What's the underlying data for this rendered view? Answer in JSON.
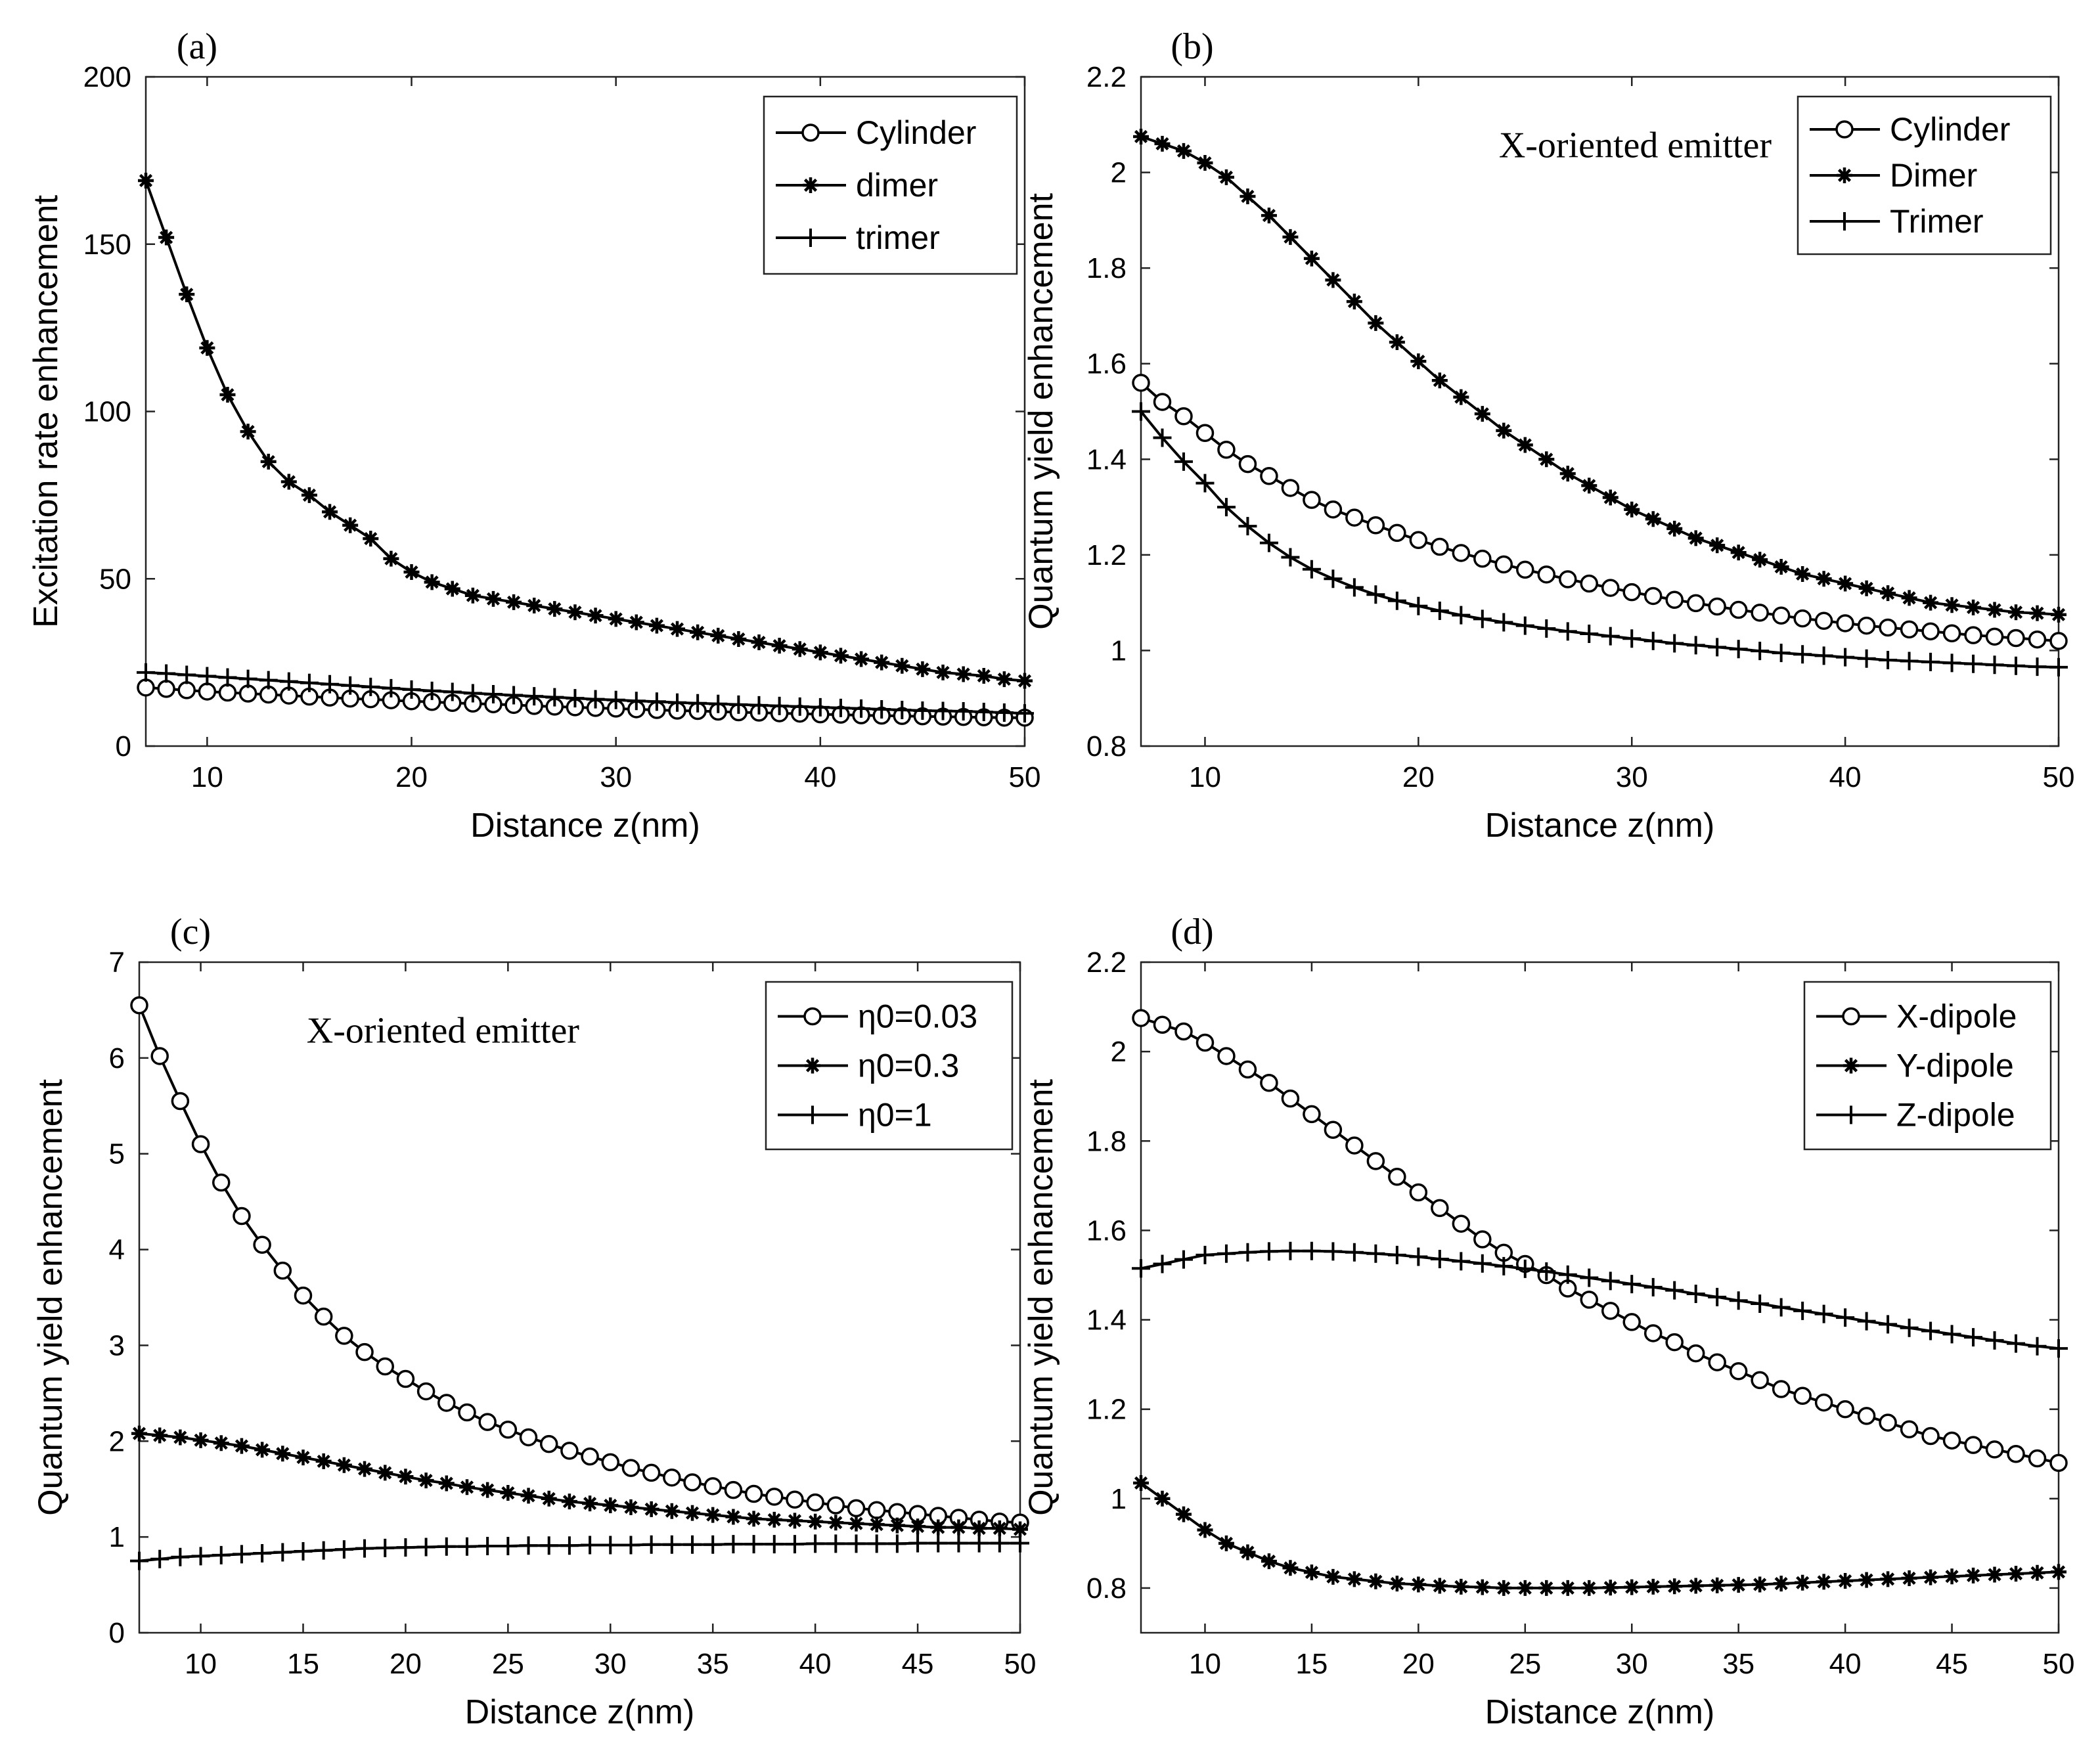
{
  "figure": {
    "background": "#ffffff",
    "ink": "#000000"
  },
  "chart_data": [
    {
      "panel_label": "(a)",
      "type": "line",
      "title": "",
      "annotation": "",
      "xlabel": "Distance z(nm)",
      "ylabel": "Excitation rate enhancement",
      "xlim": [
        7,
        50
      ],
      "ylim": [
        0,
        200
      ],
      "xticks": [
        10,
        20,
        30,
        40,
        50
      ],
      "yticks": [
        0,
        50,
        100,
        150,
        200
      ],
      "legend_position": "top-right",
      "x": [
        7,
        8,
        9,
        10,
        11,
        12,
        13,
        14,
        15,
        16,
        17,
        18,
        19,
        20,
        21,
        22,
        23,
        24,
        25,
        26,
        27,
        28,
        29,
        30,
        31,
        32,
        33,
        34,
        35,
        36,
        37,
        38,
        39,
        40,
        41,
        42,
        43,
        44,
        45,
        46,
        47,
        48,
        49,
        50
      ],
      "series": [
        {
          "name": "Cylinder",
          "marker": "circle",
          "values": [
            17.5,
            17.1,
            16.7,
            16.3,
            16.0,
            15.7,
            15.4,
            15.1,
            14.8,
            14.5,
            14.2,
            14.0,
            13.7,
            13.4,
            13.2,
            12.9,
            12.7,
            12.5,
            12.3,
            12.0,
            11.8,
            11.6,
            11.4,
            11.2,
            11.0,
            10.8,
            10.6,
            10.5,
            10.3,
            10.1,
            10.0,
            9.8,
            9.7,
            9.5,
            9.4,
            9.2,
            9.1,
            9.0,
            8.9,
            8.8,
            8.7,
            8.6,
            8.5,
            8.5
          ]
        },
        {
          "name": "dimer",
          "marker": "star",
          "values": [
            169,
            152,
            135,
            119,
            105,
            94,
            85,
            79,
            75,
            70,
            66,
            62,
            56,
            52,
            49,
            47,
            45,
            44,
            43,
            42,
            41,
            40,
            39,
            38,
            37,
            36,
            35,
            34,
            33,
            32,
            31,
            30,
            29,
            28,
            27,
            26,
            25,
            24,
            23,
            22,
            21.5,
            21,
            20,
            19.5
          ]
        },
        {
          "name": "trimer",
          "marker": "plus",
          "values": [
            22.0,
            21.7,
            21.3,
            20.9,
            20.5,
            20.1,
            19.7,
            19.3,
            18.9,
            18.5,
            18.1,
            17.7,
            17.3,
            16.9,
            16.5,
            16.2,
            15.8,
            15.5,
            15.2,
            14.9,
            14.6,
            14.3,
            14.0,
            13.8,
            13.5,
            13.3,
            13.0,
            12.8,
            12.6,
            12.4,
            12.2,
            12.0,
            11.8,
            11.6,
            11.4,
            11.2,
            11.0,
            10.8,
            10.6,
            10.5,
            10.4,
            10.2,
            10.0,
            9.8
          ]
        }
      ]
    },
    {
      "panel_label": "(b)",
      "type": "line",
      "title": "",
      "annotation": "X-oriented emitter",
      "xlabel": "Distance z(nm)",
      "ylabel": "Quantum yield enhancement",
      "xlim": [
        7,
        50
      ],
      "ylim": [
        0.8,
        2.2
      ],
      "xticks": [
        10,
        20,
        30,
        40,
        50
      ],
      "yticks": [
        0.8,
        1,
        1.2,
        1.4,
        1.6,
        1.8,
        2,
        2.2
      ],
      "ytick_labels": [
        "0.8",
        "1",
        "1.2",
        "1.4",
        "1.6",
        "1.8",
        "2",
        "2.2"
      ],
      "legend_position": "top-right",
      "x": [
        7,
        8,
        9,
        10,
        11,
        12,
        13,
        14,
        15,
        16,
        17,
        18,
        19,
        20,
        21,
        22,
        23,
        24,
        25,
        26,
        27,
        28,
        29,
        30,
        31,
        32,
        33,
        34,
        35,
        36,
        37,
        38,
        39,
        40,
        41,
        42,
        43,
        44,
        45,
        46,
        47,
        48,
        49,
        50
      ],
      "series": [
        {
          "name": "Cylinder",
          "marker": "circle",
          "values": [
            1.56,
            1.52,
            1.49,
            1.455,
            1.42,
            1.39,
            1.365,
            1.34,
            1.315,
            1.295,
            1.278,
            1.262,
            1.246,
            1.231,
            1.217,
            1.204,
            1.192,
            1.18,
            1.169,
            1.159,
            1.149,
            1.14,
            1.131,
            1.122,
            1.114,
            1.106,
            1.099,
            1.092,
            1.085,
            1.079,
            1.073,
            1.067,
            1.062,
            1.057,
            1.052,
            1.048,
            1.044,
            1.04,
            1.036,
            1.032,
            1.029,
            1.026,
            1.023,
            1.02
          ]
        },
        {
          "name": "Dimer",
          "marker": "star",
          "values": [
            2.075,
            2.06,
            2.045,
            2.02,
            1.99,
            1.95,
            1.91,
            1.865,
            1.82,
            1.775,
            1.73,
            1.685,
            1.645,
            1.605,
            1.565,
            1.53,
            1.495,
            1.46,
            1.43,
            1.4,
            1.37,
            1.345,
            1.32,
            1.295,
            1.275,
            1.255,
            1.235,
            1.22,
            1.205,
            1.19,
            1.175,
            1.16,
            1.15,
            1.14,
            1.13,
            1.12,
            1.11,
            1.1,
            1.095,
            1.09,
            1.085,
            1.08,
            1.078,
            1.075
          ]
        },
        {
          "name": "Trimer",
          "marker": "plus",
          "values": [
            1.5,
            1.445,
            1.395,
            1.35,
            1.3,
            1.26,
            1.225,
            1.195,
            1.17,
            1.15,
            1.132,
            1.117,
            1.104,
            1.093,
            1.083,
            1.074,
            1.066,
            1.059,
            1.052,
            1.046,
            1.04,
            1.035,
            1.03,
            1.025,
            1.02,
            1.015,
            1.011,
            1.007,
            1.003,
            0.999,
            0.995,
            0.992,
            0.989,
            0.986,
            0.983,
            0.98,
            0.978,
            0.976,
            0.974,
            0.972,
            0.97,
            0.968,
            0.966,
            0.965
          ]
        }
      ]
    },
    {
      "panel_label": "(c)",
      "type": "line",
      "title": "",
      "annotation": "X-oriented emitter",
      "xlabel": "Distance z(nm)",
      "ylabel": "Quantum yield enhancement",
      "xlim": [
        7,
        50
      ],
      "ylim": [
        0,
        7
      ],
      "xticks": [
        10,
        15,
        20,
        25,
        30,
        35,
        40,
        45,
        50
      ],
      "yticks": [
        0,
        1,
        2,
        3,
        4,
        5,
        6,
        7
      ],
      "legend_position": "top-right",
      "x": [
        7,
        8,
        9,
        10,
        11,
        12,
        13,
        14,
        15,
        16,
        17,
        18,
        19,
        20,
        21,
        22,
        23,
        24,
        25,
        26,
        27,
        28,
        29,
        30,
        31,
        32,
        33,
        34,
        35,
        36,
        37,
        38,
        39,
        40,
        41,
        42,
        43,
        44,
        45,
        46,
        47,
        48,
        49,
        50
      ],
      "series": [
        {
          "name": "η0=0.03",
          "marker": "circle",
          "values": [
            6.55,
            6.02,
            5.55,
            5.1,
            4.7,
            4.35,
            4.05,
            3.78,
            3.52,
            3.3,
            3.1,
            2.93,
            2.78,
            2.65,
            2.52,
            2.4,
            2.3,
            2.2,
            2.12,
            2.04,
            1.97,
            1.9,
            1.84,
            1.78,
            1.72,
            1.67,
            1.62,
            1.57,
            1.53,
            1.49,
            1.45,
            1.42,
            1.39,
            1.36,
            1.33,
            1.3,
            1.28,
            1.26,
            1.24,
            1.22,
            1.2,
            1.18,
            1.16,
            1.15
          ]
        },
        {
          "name": "η0=0.3",
          "marker": "star",
          "values": [
            2.08,
            2.06,
            2.04,
            2.01,
            1.98,
            1.95,
            1.91,
            1.87,
            1.83,
            1.79,
            1.75,
            1.71,
            1.67,
            1.63,
            1.59,
            1.56,
            1.52,
            1.49,
            1.46,
            1.43,
            1.4,
            1.37,
            1.35,
            1.33,
            1.31,
            1.29,
            1.27,
            1.25,
            1.23,
            1.21,
            1.19,
            1.18,
            1.17,
            1.16,
            1.15,
            1.14,
            1.13,
            1.12,
            1.11,
            1.1,
            1.1,
            1.09,
            1.09,
            1.08
          ]
        },
        {
          "name": "η0=1",
          "marker": "plus",
          "values": [
            0.75,
            0.77,
            0.79,
            0.8,
            0.81,
            0.82,
            0.83,
            0.84,
            0.85,
            0.86,
            0.87,
            0.88,
            0.885,
            0.89,
            0.895,
            0.9,
            0.9,
            0.905,
            0.905,
            0.91,
            0.91,
            0.91,
            0.915,
            0.915,
            0.915,
            0.92,
            0.92,
            0.92,
            0.92,
            0.925,
            0.925,
            0.925,
            0.925,
            0.93,
            0.93,
            0.93,
            0.93,
            0.93,
            0.935,
            0.935,
            0.935,
            0.935,
            0.935,
            0.935
          ]
        }
      ]
    },
    {
      "panel_label": "(d)",
      "type": "line",
      "title": "",
      "annotation": "",
      "xlabel": "Distance z(nm)",
      "ylabel": "Quantum yield enhancement",
      "xlim": [
        7,
        50
      ],
      "ylim": [
        0.7,
        2.2
      ],
      "xticks": [
        10,
        15,
        20,
        25,
        30,
        35,
        40,
        45,
        50
      ],
      "yticks": [
        0.8,
        1,
        1.2,
        1.4,
        1.6,
        1.8,
        2,
        2.2
      ],
      "ytick_labels": [
        "0.8",
        "1",
        "1.2",
        "1.4",
        "1.6",
        "1.8",
        "2",
        "2.2"
      ],
      "legend_position": "top-right",
      "x": [
        7,
        8,
        9,
        10,
        11,
        12,
        13,
        14,
        15,
        16,
        17,
        18,
        19,
        20,
        21,
        22,
        23,
        24,
        25,
        26,
        27,
        28,
        29,
        30,
        31,
        32,
        33,
        34,
        35,
        36,
        37,
        38,
        39,
        40,
        41,
        42,
        43,
        44,
        45,
        46,
        47,
        48,
        49,
        50
      ],
      "series": [
        {
          "name": "X-dipole",
          "marker": "circle",
          "values": [
            2.075,
            2.06,
            2.045,
            2.02,
            1.99,
            1.96,
            1.93,
            1.895,
            1.86,
            1.825,
            1.79,
            1.755,
            1.72,
            1.685,
            1.65,
            1.615,
            1.58,
            1.55,
            1.525,
            1.5,
            1.47,
            1.445,
            1.42,
            1.395,
            1.37,
            1.35,
            1.325,
            1.305,
            1.285,
            1.265,
            1.245,
            1.23,
            1.215,
            1.2,
            1.185,
            1.17,
            1.155,
            1.14,
            1.13,
            1.12,
            1.11,
            1.1,
            1.09,
            1.08
          ]
        },
        {
          "name": "Y-dipole",
          "marker": "star",
          "values": [
            1.035,
            1.0,
            0.965,
            0.93,
            0.9,
            0.88,
            0.86,
            0.845,
            0.835,
            0.825,
            0.82,
            0.815,
            0.81,
            0.808,
            0.805,
            0.803,
            0.802,
            0.8,
            0.8,
            0.8,
            0.8,
            0.8,
            0.801,
            0.802,
            0.803,
            0.804,
            0.805,
            0.806,
            0.807,
            0.808,
            0.81,
            0.812,
            0.814,
            0.816,
            0.818,
            0.82,
            0.822,
            0.824,
            0.826,
            0.828,
            0.83,
            0.832,
            0.834,
            0.836
          ]
        },
        {
          "name": "Z-dipole",
          "marker": "plus",
          "values": [
            1.515,
            1.525,
            1.535,
            1.545,
            1.548,
            1.551,
            1.553,
            1.554,
            1.554,
            1.553,
            1.551,
            1.548,
            1.545,
            1.541,
            1.536,
            1.531,
            1.526,
            1.52,
            1.514,
            1.508,
            1.501,
            1.494,
            1.487,
            1.48,
            1.473,
            1.466,
            1.458,
            1.451,
            1.443,
            1.436,
            1.428,
            1.42,
            1.413,
            1.405,
            1.397,
            1.39,
            1.382,
            1.375,
            1.368,
            1.361,
            1.354,
            1.347,
            1.341,
            1.336
          ]
        }
      ]
    }
  ]
}
